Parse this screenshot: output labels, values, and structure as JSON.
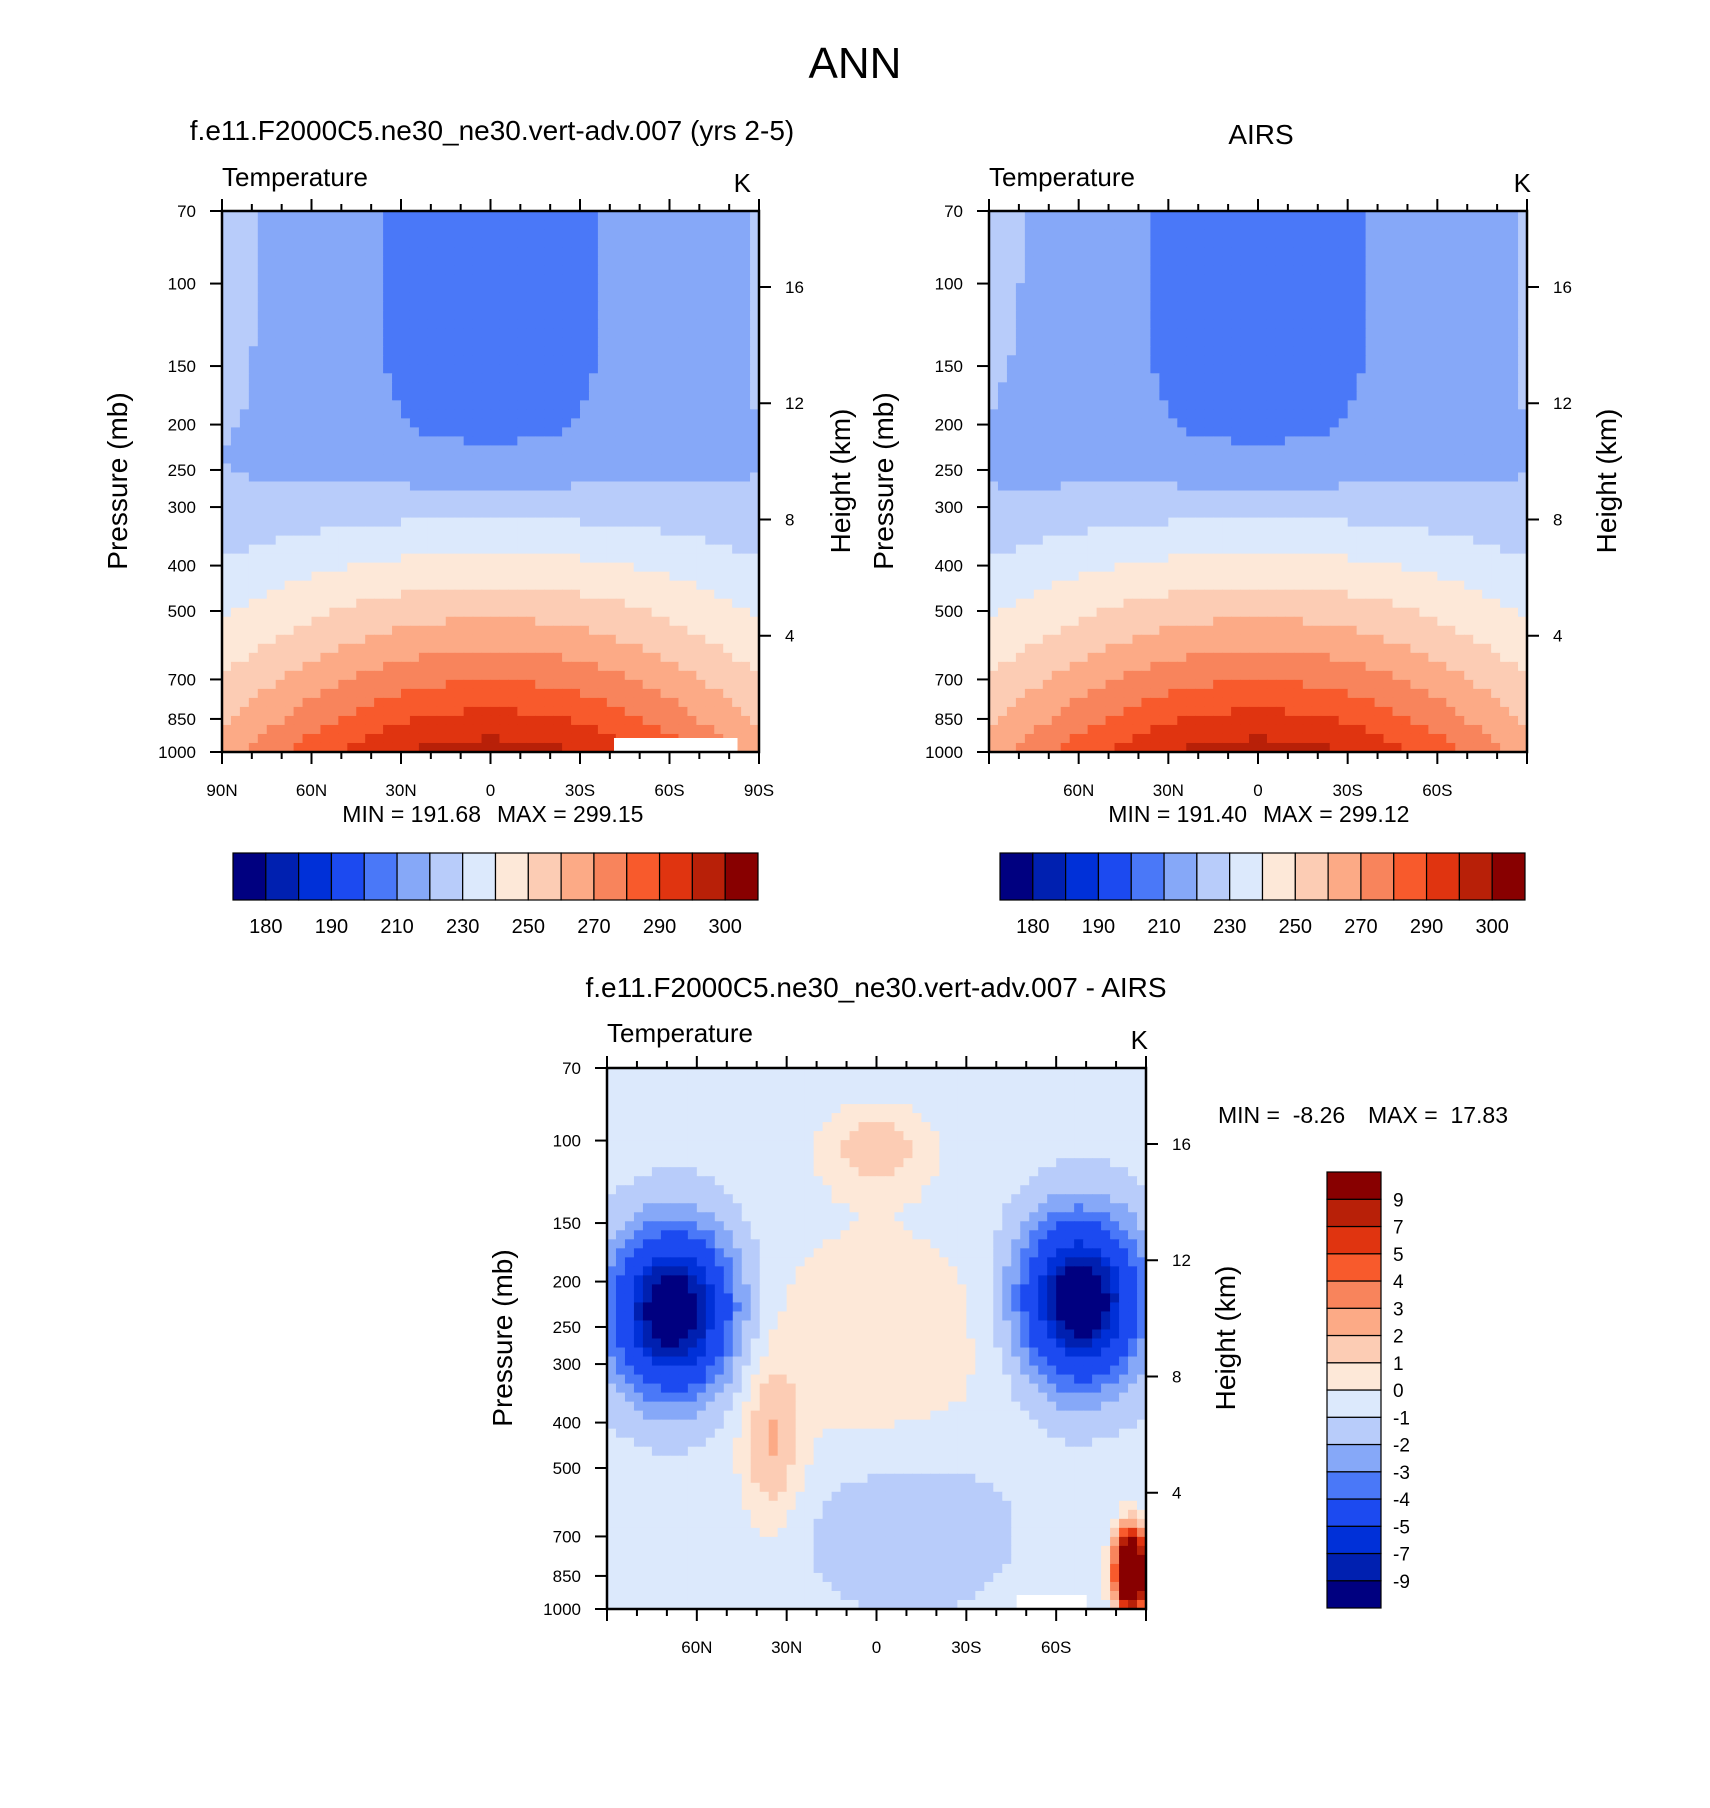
{
  "figure": {
    "title": "ANN"
  },
  "colors": {
    "abs_palette": [
      "#000080",
      "#0020b0",
      "#0030d8",
      "#1c4af0",
      "#4a78f8",
      "#86a8f8",
      "#b8ccfa",
      "#dce9fc",
      "#fde8d8",
      "#fcccb4",
      "#fcaa86",
      "#f8845c",
      "#f85a2c",
      "#e03410",
      "#b82008",
      "#880000"
    ],
    "diff_palette": [
      "#000080",
      "#0020b0",
      "#0030d8",
      "#1c4af0",
      "#4a78f8",
      "#86a8f8",
      "#b8ccfa",
      "#dce9fc",
      "#fde8d8",
      "#fcccb4",
      "#fcaa86",
      "#f8845c",
      "#f85a2c",
      "#e03410",
      "#b82008",
      "#880000"
    ],
    "missing": "#ffffff"
  },
  "chart_data": [
    {
      "id": "model",
      "type": "heatmap",
      "title": "f.e11.F2000C5.ne30_ne30.vert-adv.007 (yrs 2-5)",
      "variable_label": "Temperature",
      "units": "K",
      "ylabel": "Pressure (mb)",
      "ylabel_right": "Height (km)",
      "x_ticks": [
        "90N",
        "60N",
        "30N",
        "0",
        "30S",
        "60S",
        "90S"
      ],
      "y_ticks": [
        70,
        100,
        150,
        200,
        250,
        300,
        400,
        500,
        700,
        850,
        1000
      ],
      "height_ticks": [
        16,
        12,
        8,
        4
      ],
      "min_label": "MIN = 191.68",
      "max_label": "MAX = 299.15",
      "colorbar": {
        "orientation": "horizontal",
        "levels": [
          "180",
          "190",
          "210",
          "230",
          "250",
          "270",
          "290",
          "300"
        ]
      },
      "field": {
        "kind": "absolute",
        "lat_range": [
          90,
          -90
        ],
        "p_range": [
          70,
          1000
        ]
      }
    },
    {
      "id": "obs",
      "type": "heatmap",
      "title": "AIRS",
      "variable_label": "Temperature",
      "units": "K",
      "ylabel": "Pressure (mb)",
      "ylabel_right": "Height (km)",
      "x_ticks": [
        "60N",
        "30N",
        "0",
        "30S",
        "60S"
      ],
      "y_ticks": [
        70,
        100,
        150,
        200,
        250,
        300,
        400,
        500,
        700,
        850,
        1000
      ],
      "height_ticks": [
        16,
        12,
        8,
        4
      ],
      "min_label": "MIN = 191.40",
      "max_label": "MAX = 299.12",
      "colorbar": {
        "orientation": "horizontal",
        "levels": [
          "180",
          "190",
          "210",
          "230",
          "250",
          "270",
          "290",
          "300"
        ]
      },
      "field": {
        "kind": "absolute",
        "lat_range": [
          90,
          -90
        ],
        "p_range": [
          70,
          1000
        ]
      }
    },
    {
      "id": "diff",
      "type": "heatmap",
      "title": "f.e11.F2000C5.ne30_ne30.vert-adv.007 - AIRS",
      "variable_label": "Temperature",
      "units": "K",
      "ylabel": "Pressure (mb)",
      "ylabel_right": "Height (km)",
      "x_ticks": [
        "60N",
        "30N",
        "0",
        "30S",
        "60S"
      ],
      "y_ticks": [
        70,
        100,
        150,
        200,
        250,
        300,
        400,
        500,
        700,
        850,
        1000
      ],
      "height_ticks": [
        16,
        12,
        8,
        4
      ],
      "min_label": "MIN =  -8.26",
      "max_label": "MAX =  17.83",
      "colorbar": {
        "orientation": "vertical",
        "levels": [
          "9",
          "7",
          "5",
          "4",
          "3",
          "2",
          "1",
          "0",
          "-1",
          "-2",
          "-3",
          "-4",
          "-5",
          "-7",
          "-9"
        ]
      },
      "field": {
        "kind": "difference",
        "lat_range": [
          90,
          -90
        ],
        "p_range": [
          70,
          1000
        ]
      }
    }
  ]
}
